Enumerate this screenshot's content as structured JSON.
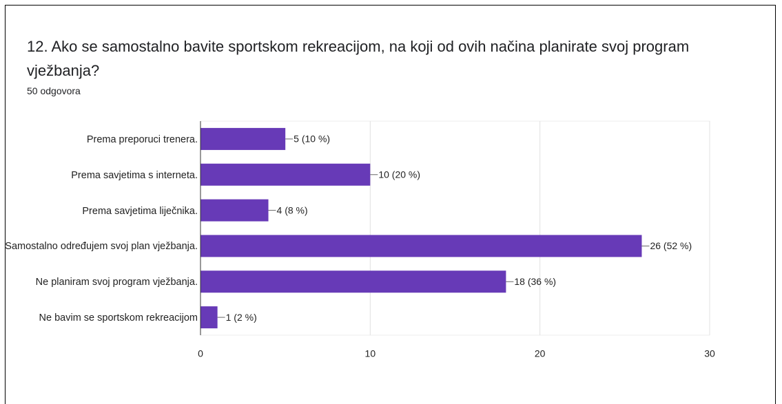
{
  "chart_data": {
    "type": "bar",
    "orientation": "horizontal",
    "title": "12. Ako se samostalno bavite sportskom rekreacijom, na koji od ovih načina planirate svoj program vježbanja?",
    "subtitle": "50 odgovora",
    "categories": [
      "Prema preporuci trenera.",
      "Prema savjetima s interneta.",
      "Prema savjetima liječnika.",
      "Samostalno određujem svoj plan vježbanja.",
      "Ne planiram svoj program vježbanja.",
      "Ne bavim se sportskom rekreacijom"
    ],
    "values": [
      5,
      10,
      4,
      26,
      18,
      1
    ],
    "value_labels": [
      "5 (10 %)",
      "10 (20 %)",
      "4 (8 %)",
      "26 (52 %)",
      "18 (36 %)",
      "1 (2 %)"
    ],
    "color": "#673ab7",
    "xlim": [
      0,
      30
    ],
    "xticks": [
      0,
      10,
      20,
      30
    ],
    "grid": true
  }
}
